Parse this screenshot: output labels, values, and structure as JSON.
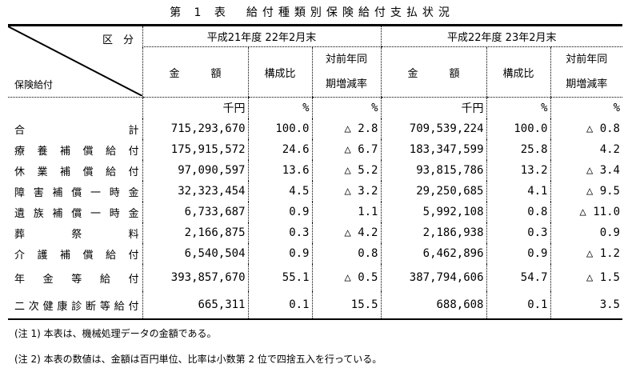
{
  "title": "第 1 表　給付種類別保険給付支払状況",
  "header": {
    "kubun": "区　分",
    "row_label": "保険給付",
    "period1": "平成21年度 22年2月末",
    "period2": "平成22年度 23年2月末",
    "amount": "金　　　額",
    "ratio": "構成比",
    "change_l1": "対前年同",
    "change_l2": "期増減率"
  },
  "units": {
    "amount": "千円",
    "pct": "%"
  },
  "rows": [
    {
      "label": "合計",
      "a1": "715,293,670",
      "r1": "100.0",
      "c1": "△ 2.8",
      "a2": "709,539,224",
      "r2": "100.0",
      "c2": "△ 0.8"
    },
    {
      "label": "療養補償給付",
      "a1": "175,915,572",
      "r1": "24.6",
      "c1": "△ 6.7",
      "a2": "183,347,599",
      "r2": "25.8",
      "c2": "4.2"
    },
    {
      "label": "休業補償給付",
      "a1": "97,090,597",
      "r1": "13.6",
      "c1": "△ 5.2",
      "a2": "93,815,786",
      "r2": "13.2",
      "c2": "△ 3.4"
    },
    {
      "label": "障害補償一時金",
      "a1": "32,323,454",
      "r1": "4.5",
      "c1": "△ 3.2",
      "a2": "29,250,685",
      "r2": "4.1",
      "c2": "△ 9.5"
    },
    {
      "label": "遺族補償一時金",
      "a1": "6,733,687",
      "r1": "0.9",
      "c1": "1.1",
      "a2": "5,992,108",
      "r2": "0.8",
      "c2": "△ 11.0"
    },
    {
      "label": "葬祭料",
      "a1": "2,166,875",
      "r1": "0.3",
      "c1": "△ 4.2",
      "a2": "2,186,938",
      "r2": "0.3",
      "c2": "0.9"
    },
    {
      "label": "介護補償給付",
      "a1": "6,540,504",
      "r1": "0.9",
      "c1": "0.8",
      "a2": "6,462,896",
      "r2": "0.9",
      "c2": "△ 1.2"
    },
    {
      "label": "年金等給付",
      "a1": "393,857,670",
      "r1": "55.1",
      "c1": "△ 0.5",
      "a2": "387,794,606",
      "r2": "54.7",
      "c2": "△ 1.5"
    },
    {
      "label": "二次健康診断等給付",
      "a1": "665,311",
      "r1": "0.1",
      "c1": "15.5",
      "a2": "688,608",
      "r2": "0.1",
      "c2": "3.5"
    }
  ],
  "notes": [
    "(注 1) 本表は、機械処理データの金額である。",
    "(注 2) 本表の数値は、金額は百円単位、比率は小数第 2 位で四捨五入を行っている。"
  ]
}
